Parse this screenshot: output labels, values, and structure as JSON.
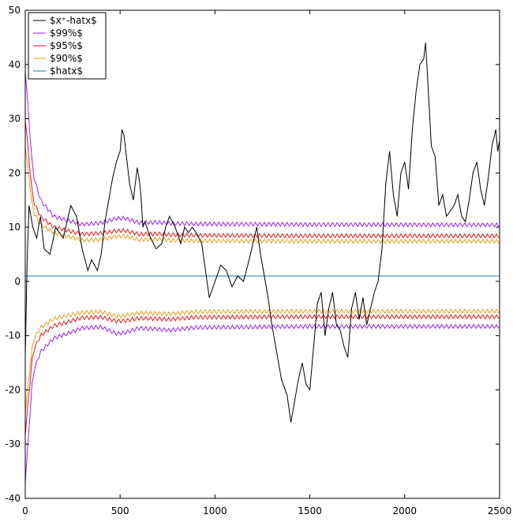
{
  "chart_data": {
    "type": "line",
    "title": "",
    "xlabel": "",
    "ylabel": "",
    "xlim": [
      0,
      2500
    ],
    "ylim": [
      -40,
      50
    ],
    "xticks": [
      0,
      500,
      1000,
      1500,
      2000,
      2500
    ],
    "yticks": [
      -40,
      -30,
      -20,
      -10,
      0,
      10,
      20,
      30,
      40,
      50
    ],
    "grid": false,
    "legend": "top-left",
    "series": [
      {
        "name": "$x⁺-hatx$",
        "color": "#000000",
        "x": [
          0,
          10,
          20,
          40,
          60,
          80,
          100,
          130,
          160,
          200,
          240,
          270,
          300,
          330,
          350,
          380,
          400,
          420,
          440,
          460,
          480,
          500,
          510,
          520,
          530,
          550,
          570,
          590,
          600,
          610,
          620,
          630,
          660,
          690,
          720,
          740,
          760,
          790,
          820,
          840,
          860,
          880,
          900,
          930,
          950,
          970,
          1000,
          1030,
          1060,
          1090,
          1120,
          1150,
          1180,
          1200,
          1220,
          1240,
          1260,
          1280,
          1300,
          1320,
          1350,
          1380,
          1400,
          1420,
          1440,
          1460,
          1480,
          1500,
          1520,
          1540,
          1560,
          1580,
          1600,
          1620,
          1640,
          1660,
          1680,
          1700,
          1720,
          1740,
          1760,
          1780,
          1800,
          1820,
          1840,
          1860,
          1880,
          1900,
          1920,
          1940,
          1960,
          1980,
          2000,
          2020,
          2040,
          2060,
          2080,
          2100,
          2110,
          2120,
          2140,
          2160,
          2180,
          2200,
          2220,
          2240,
          2260,
          2280,
          2300,
          2320,
          2340,
          2360,
          2380,
          2400,
          2420,
          2440,
          2460,
          2480,
          2490,
          2500
        ],
        "y": [
          -14,
          4,
          14,
          10,
          8,
          12,
          6,
          5,
          10,
          8,
          14,
          12,
          6,
          2,
          4,
          2,
          5,
          11,
          15,
          19,
          22,
          24,
          28,
          27,
          24,
          18,
          15,
          21,
          19,
          16,
          10,
          11,
          8,
          6,
          7,
          10,
          12,
          10,
          7,
          10,
          9,
          10,
          9,
          7,
          2,
          -3,
          0,
          3,
          2,
          -1,
          1,
          0,
          4,
          7,
          10,
          5,
          1,
          -3,
          -8,
          -12,
          -18,
          -21,
          -26,
          -22,
          -18,
          -15,
          -19,
          -20,
          -12,
          -4,
          -2,
          -10,
          -5,
          -2,
          -8,
          -9,
          -12,
          -14,
          -5,
          -2,
          -7,
          -3,
          -8,
          -5,
          -2,
          0,
          6,
          18,
          24,
          16,
          12,
          20,
          22,
          17,
          28,
          35,
          40,
          41,
          44,
          38,
          25,
          23,
          14,
          16,
          12,
          13,
          14,
          16,
          12,
          11,
          15,
          20,
          22,
          17,
          14,
          19,
          25,
          28,
          24,
          26
        ]
      },
      {
        "name": "$99%$",
        "color": "#a020f0",
        "upper": [
          [
            0,
            39
          ],
          [
            40,
            20
          ],
          [
            80,
            15
          ],
          [
            150,
            12
          ],
          [
            300,
            10.5
          ],
          [
            400,
            10.8
          ],
          [
            480,
            11.6
          ],
          [
            520,
            11.7
          ],
          [
            600,
            10.8
          ],
          [
            700,
            10.9
          ],
          [
            760,
            10.7
          ],
          [
            900,
            10.6
          ],
          [
            1500,
            10.5
          ],
          [
            2500,
            10.4
          ]
        ],
        "lower": [
          [
            0,
            -37
          ],
          [
            40,
            -17
          ],
          [
            80,
            -13
          ],
          [
            150,
            -10.5
          ],
          [
            300,
            -8.6
          ],
          [
            400,
            -8.4
          ],
          [
            480,
            -9.6
          ],
          [
            520,
            -9.5
          ],
          [
            600,
            -8.6
          ],
          [
            700,
            -8.8
          ],
          [
            760,
            -9.0
          ],
          [
            900,
            -8.5
          ],
          [
            1500,
            -8.3
          ],
          [
            2500,
            -8.3
          ]
        ]
      },
      {
        "name": "$95%$",
        "color": "#e41a1c",
        "upper": [
          [
            0,
            30
          ],
          [
            40,
            15
          ],
          [
            80,
            12
          ],
          [
            150,
            10
          ],
          [
            300,
            8.7
          ],
          [
            400,
            8.9
          ],
          [
            480,
            9.3
          ],
          [
            520,
            9.4
          ],
          [
            600,
            8.7
          ],
          [
            700,
            8.8
          ],
          [
            760,
            8.6
          ],
          [
            900,
            8.5
          ],
          [
            1500,
            8.4
          ],
          [
            2500,
            8.4
          ]
        ],
        "lower": [
          [
            0,
            -28
          ],
          [
            40,
            -13
          ],
          [
            80,
            -10
          ],
          [
            150,
            -8.2
          ],
          [
            300,
            -6.7
          ],
          [
            400,
            -6.6
          ],
          [
            480,
            -7.3
          ],
          [
            520,
            -7.3
          ],
          [
            600,
            -6.8
          ],
          [
            700,
            -6.9
          ],
          [
            760,
            -7.0
          ],
          [
            900,
            -6.6
          ],
          [
            1500,
            -6.5
          ],
          [
            2500,
            -6.5
          ]
        ]
      },
      {
        "name": "$90%$",
        "color": "#e6a020",
        "upper": [
          [
            0,
            25
          ],
          [
            40,
            13
          ],
          [
            80,
            10.5
          ],
          [
            150,
            9
          ],
          [
            300,
            7.6
          ],
          [
            400,
            7.7
          ],
          [
            480,
            8.3
          ],
          [
            520,
            8.4
          ],
          [
            600,
            7.7
          ],
          [
            700,
            7.8
          ],
          [
            760,
            7.6
          ],
          [
            900,
            7.5
          ],
          [
            1500,
            7.4
          ],
          [
            2500,
            7.4
          ]
        ],
        "lower": [
          [
            0,
            -24
          ],
          [
            40,
            -11
          ],
          [
            80,
            -8.5
          ],
          [
            150,
            -6.9
          ],
          [
            300,
            -5.7
          ],
          [
            400,
            -5.6
          ],
          [
            480,
            -6.4
          ],
          [
            520,
            -6.3
          ],
          [
            600,
            -5.8
          ],
          [
            700,
            -5.9
          ],
          [
            760,
            -6.0
          ],
          [
            900,
            -5.6
          ],
          [
            1500,
            -5.5
          ],
          [
            2500,
            -5.5
          ]
        ]
      },
      {
        "name": "$hatx$",
        "color": "#1f78b4",
        "x": [
          0,
          2500
        ],
        "y": [
          1,
          1
        ]
      }
    ]
  }
}
